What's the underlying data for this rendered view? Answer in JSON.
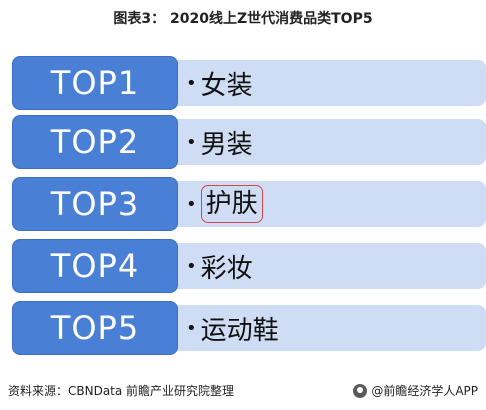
{
  "title": "图表3： 2020线上Z世代消费品类TOP5",
  "rows": [
    {
      "rank": "TOP1",
      "item": "女装"
    },
    {
      "rank": "TOP2",
      "item": "男装"
    },
    {
      "rank": "TOP3",
      "item": "护肤"
    },
    {
      "rank": "TOP4",
      "item": "彩妆"
    },
    {
      "rank": "TOP5",
      "item": "运动鞋"
    }
  ],
  "bullet": "•",
  "footer": {
    "source": "资料来源：CBNData 前瞻产业研究院整理",
    "brand": "@前瞻经济学人APP"
  },
  "colors": {
    "rank_box": "#4a7fd6",
    "item_box": "#cfddf4",
    "highlight": "#d2464e"
  }
}
